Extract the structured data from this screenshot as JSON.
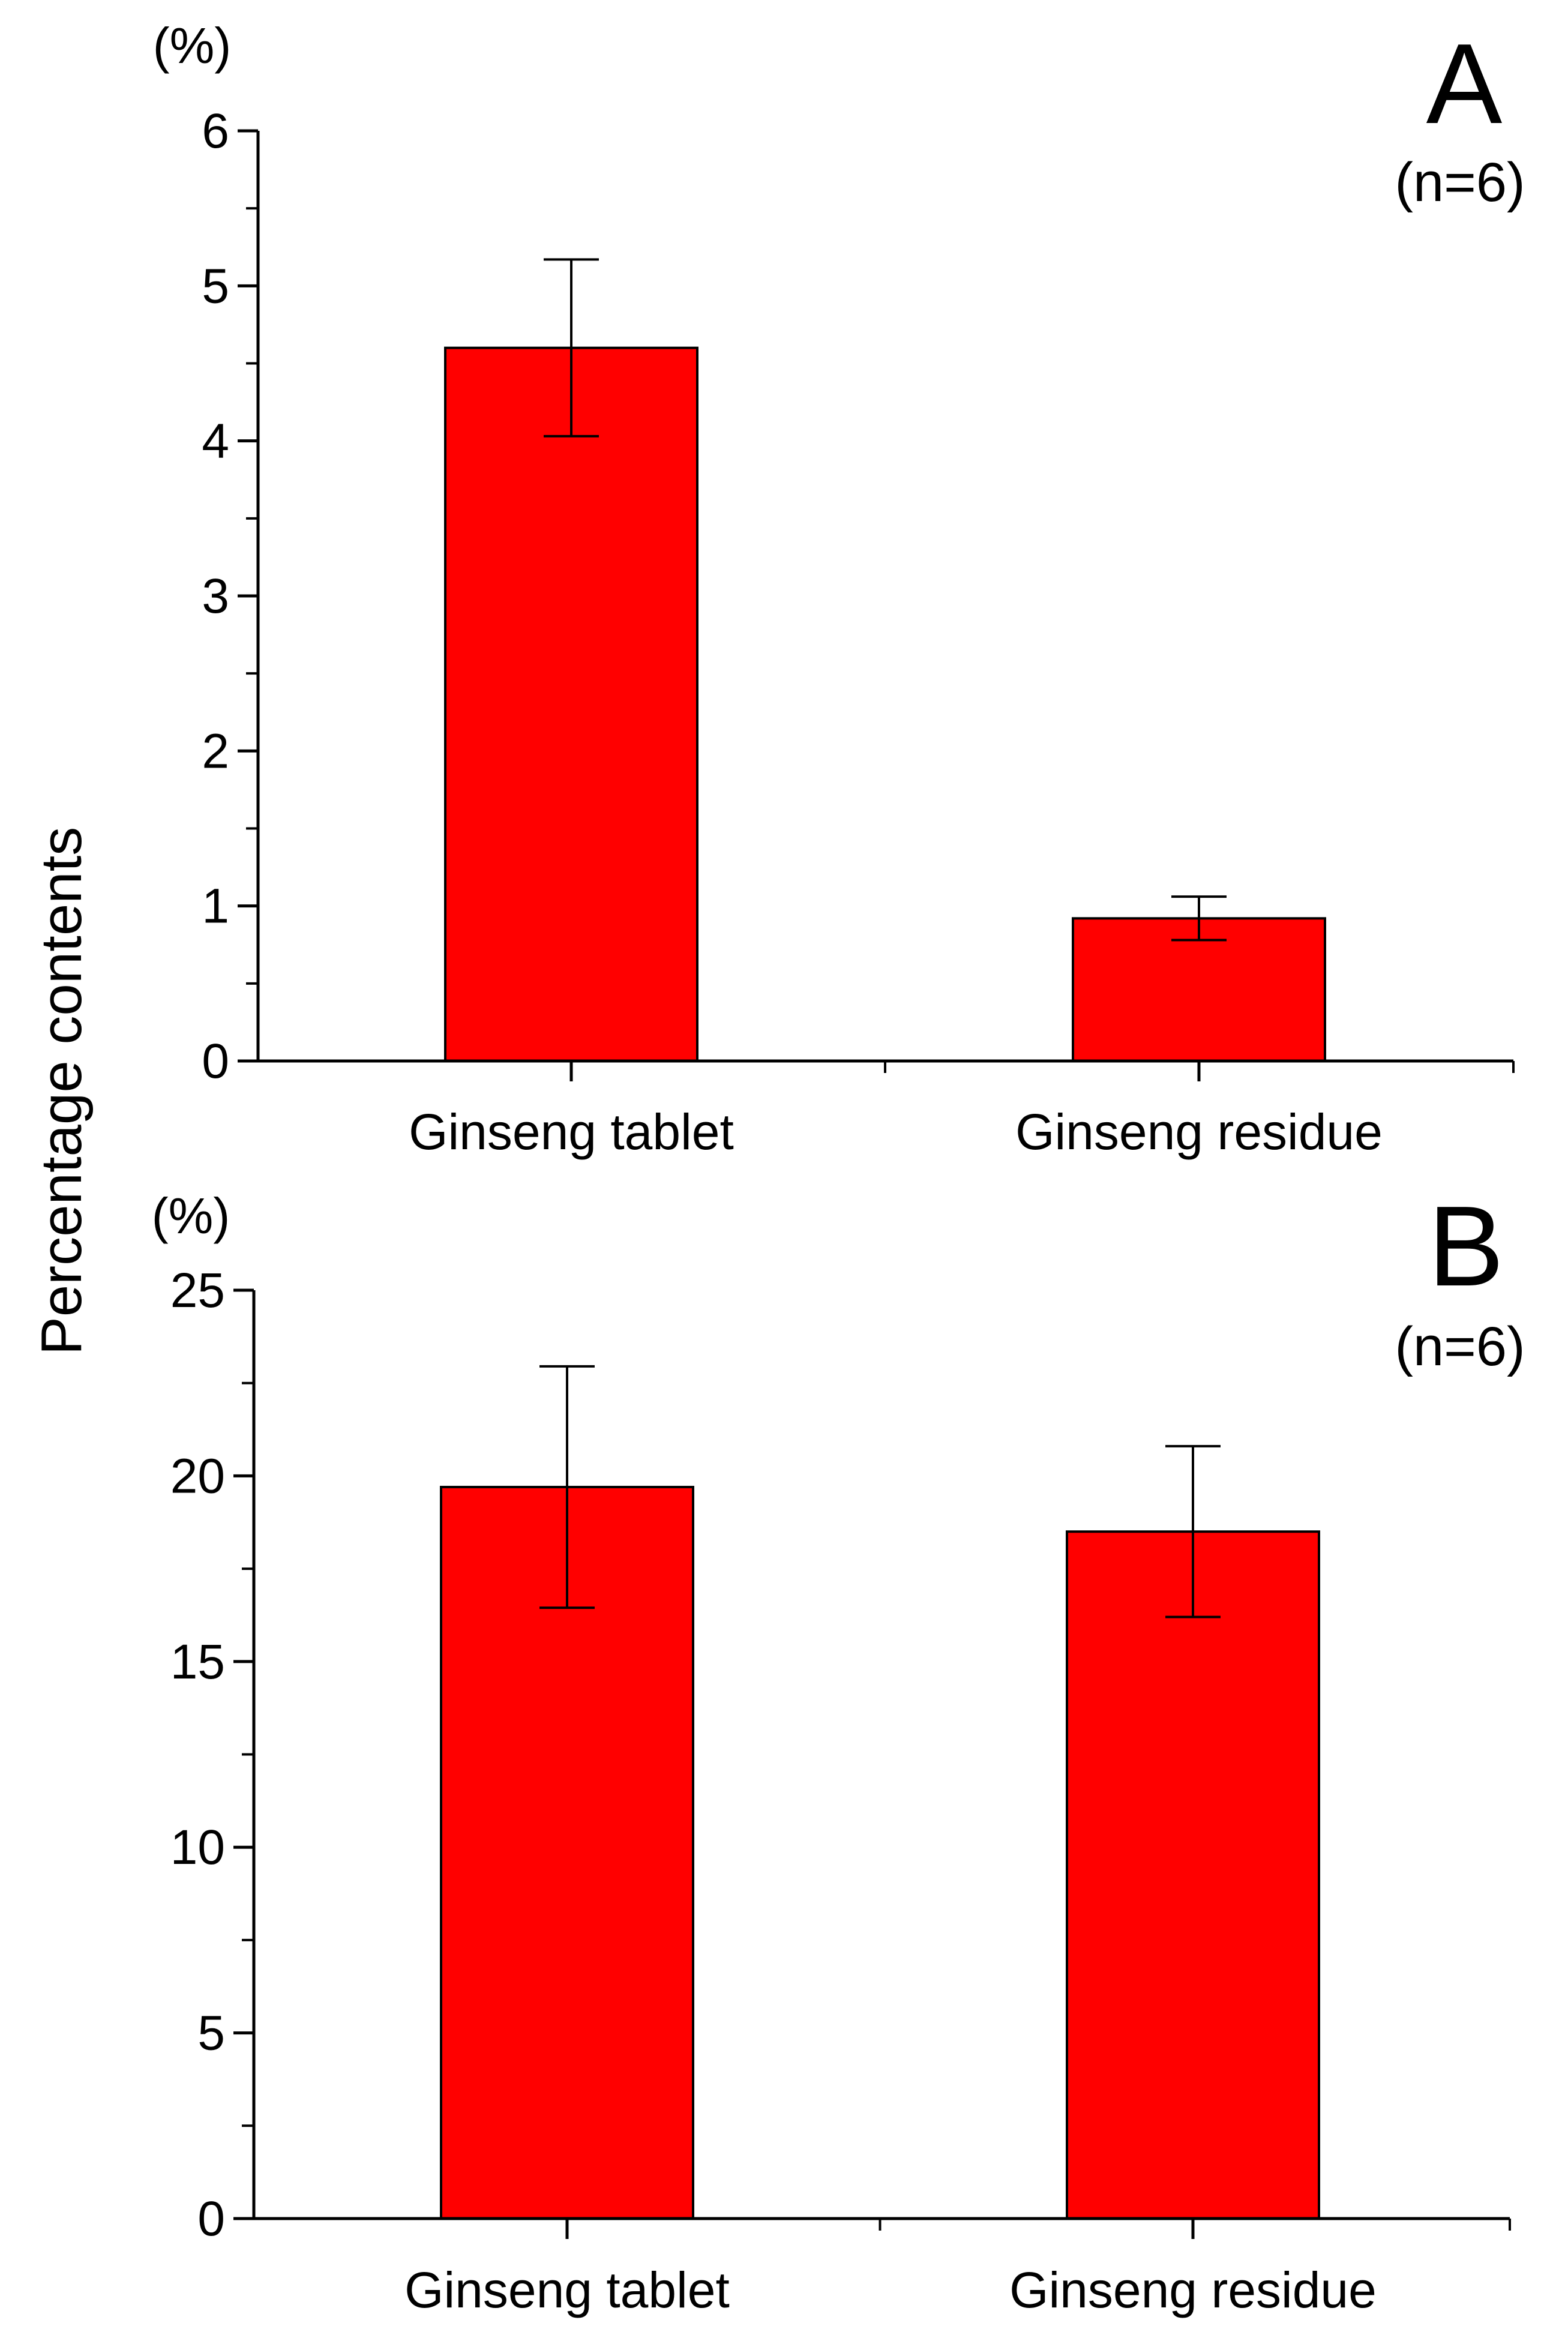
{
  "figure": {
    "ylabel": "Percentage contents"
  },
  "chart_data": [
    {
      "type": "bar",
      "panel_label": "A",
      "annotation": "(n=6)",
      "unit_label": "(%)",
      "title": "",
      "xlabel": "",
      "ylabel": "Percentage contents",
      "categories": [
        "Ginseng tablet",
        "Ginseng residue"
      ],
      "values": [
        4.6,
        0.92
      ],
      "errors": [
        0.57,
        0.14
      ],
      "ylim": [
        0,
        6
      ],
      "major_ticks": [
        0,
        1,
        2,
        3,
        4,
        5,
        6
      ],
      "tick_labels": [
        "0",
        "1",
        "2",
        "3",
        "4",
        "5",
        "6"
      ],
      "minor_step": 0.5,
      "grid": false,
      "bar_color": "#ff0000"
    },
    {
      "type": "bar",
      "panel_label": "B",
      "annotation": "(n=6)",
      "unit_label": "(%)",
      "title": "",
      "xlabel": "",
      "ylabel": "Percentage contents",
      "categories": [
        "Ginseng tablet",
        "Ginseng residue"
      ],
      "values": [
        19.7,
        18.5
      ],
      "errors": [
        3.25,
        2.3
      ],
      "ylim": [
        0,
        25
      ],
      "major_ticks": [
        0,
        5,
        10,
        15,
        20,
        25
      ],
      "tick_labels": [
        "0",
        "5",
        "10",
        "15",
        "20",
        "25"
      ],
      "minor_step": 2.5,
      "grid": false,
      "bar_color": "#ff0000"
    }
  ]
}
